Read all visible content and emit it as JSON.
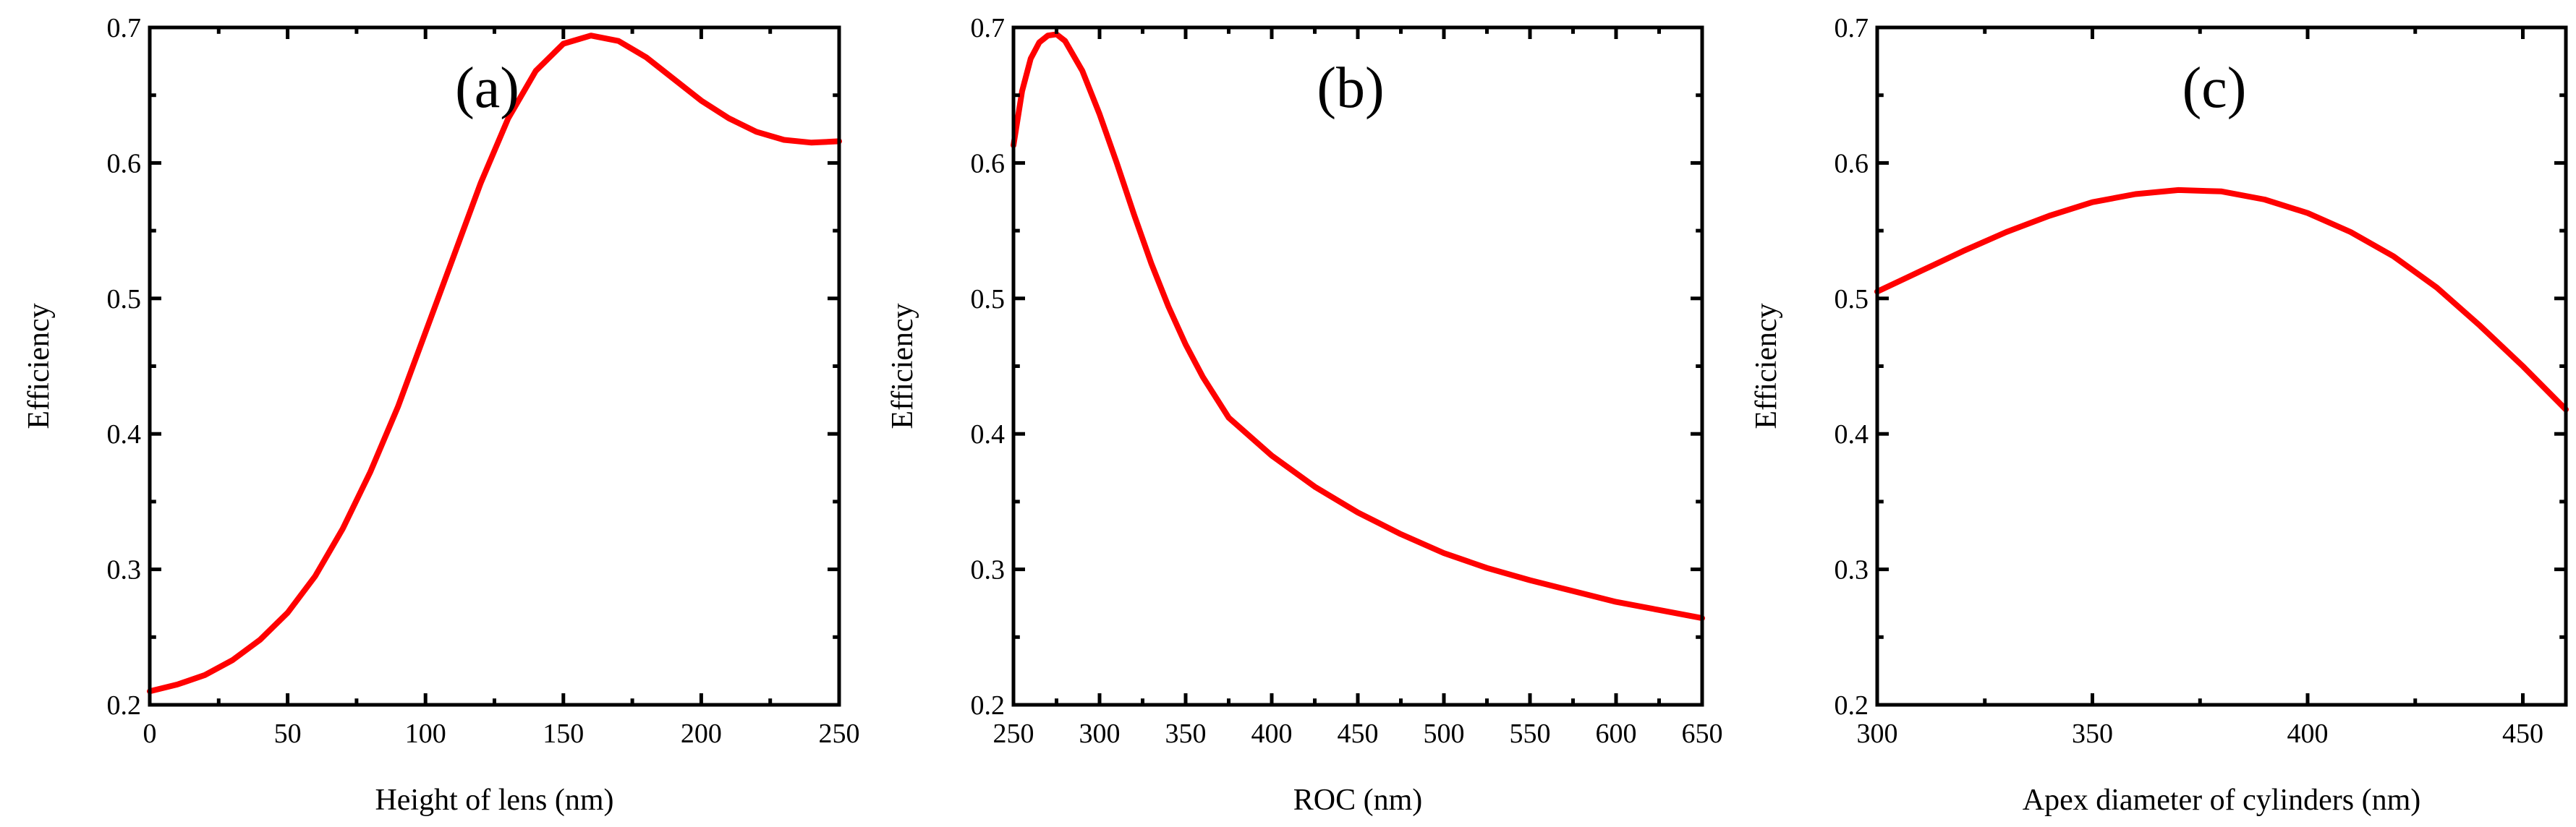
{
  "chart_data": [
    {
      "type": "line",
      "panel_label": "(a)",
      "xlabel": "Height of lens (nm)",
      "ylabel": "Efficiency",
      "xlim": [
        0,
        250
      ],
      "ylim": [
        0.2,
        0.7
      ],
      "xticks": [
        0,
        50,
        100,
        150,
        200,
        250
      ],
      "yticks": [
        0.2,
        0.3,
        0.4,
        0.5,
        0.6,
        0.7
      ],
      "series": [
        {
          "name": "Efficiency",
          "color": "#ff0000",
          "x": [
            0,
            10,
            20,
            30,
            40,
            50,
            60,
            70,
            80,
            90,
            100,
            110,
            120,
            130,
            140,
            150,
            160,
            170,
            180,
            190,
            200,
            210,
            220,
            230,
            240,
            250
          ],
          "y": [
            0.21,
            0.215,
            0.222,
            0.233,
            0.248,
            0.268,
            0.295,
            0.33,
            0.372,
            0.42,
            0.475,
            0.53,
            0.585,
            0.633,
            0.668,
            0.688,
            0.694,
            0.69,
            0.678,
            0.662,
            0.646,
            0.633,
            0.623,
            0.617,
            0.615,
            0.616
          ]
        }
      ]
    },
    {
      "type": "line",
      "panel_label": "(b)",
      "xlabel": "ROC (nm)",
      "ylabel": "Efficiency",
      "xlim": [
        250,
        650
      ],
      "ylim": [
        0.2,
        0.7
      ],
      "xticks": [
        250,
        300,
        350,
        400,
        450,
        500,
        550,
        600,
        650
      ],
      "yticks": [
        0.2,
        0.3,
        0.4,
        0.5,
        0.6,
        0.7
      ],
      "series": [
        {
          "name": "Efficiency",
          "color": "#ff0000",
          "x": [
            250,
            255,
            260,
            265,
            270,
            275,
            280,
            290,
            300,
            310,
            320,
            330,
            340,
            350,
            360,
            375,
            400,
            425,
            450,
            475,
            500,
            525,
            550,
            575,
            600,
            625,
            650
          ],
          "y": [
            0.613,
            0.653,
            0.677,
            0.689,
            0.694,
            0.695,
            0.69,
            0.668,
            0.636,
            0.6,
            0.562,
            0.526,
            0.494,
            0.466,
            0.442,
            0.412,
            0.384,
            0.361,
            0.342,
            0.326,
            0.312,
            0.301,
            0.292,
            0.284,
            0.276,
            0.27,
            0.264
          ]
        }
      ]
    },
    {
      "type": "line",
      "panel_label": "(c)",
      "xlabel": "Apex diameter of cylinders (nm)",
      "ylabel": "Efficiency",
      "xlim": [
        300,
        460
      ],
      "ylim": [
        0.2,
        0.7
      ],
      "xticks": [
        300,
        350,
        400,
        450
      ],
      "yticks": [
        0.2,
        0.3,
        0.4,
        0.5,
        0.6,
        0.7
      ],
      "series": [
        {
          "name": "Efficiency",
          "color": "#ff0000",
          "x": [
            300,
            310,
            320,
            330,
            340,
            350,
            360,
            370,
            380,
            390,
            400,
            410,
            420,
            430,
            440,
            450,
            460
          ],
          "y": [
            0.505,
            0.52,
            0.535,
            0.549,
            0.561,
            0.571,
            0.577,
            0.58,
            0.579,
            0.573,
            0.563,
            0.549,
            0.531,
            0.508,
            0.48,
            0.45,
            0.418
          ]
        }
      ]
    }
  ]
}
